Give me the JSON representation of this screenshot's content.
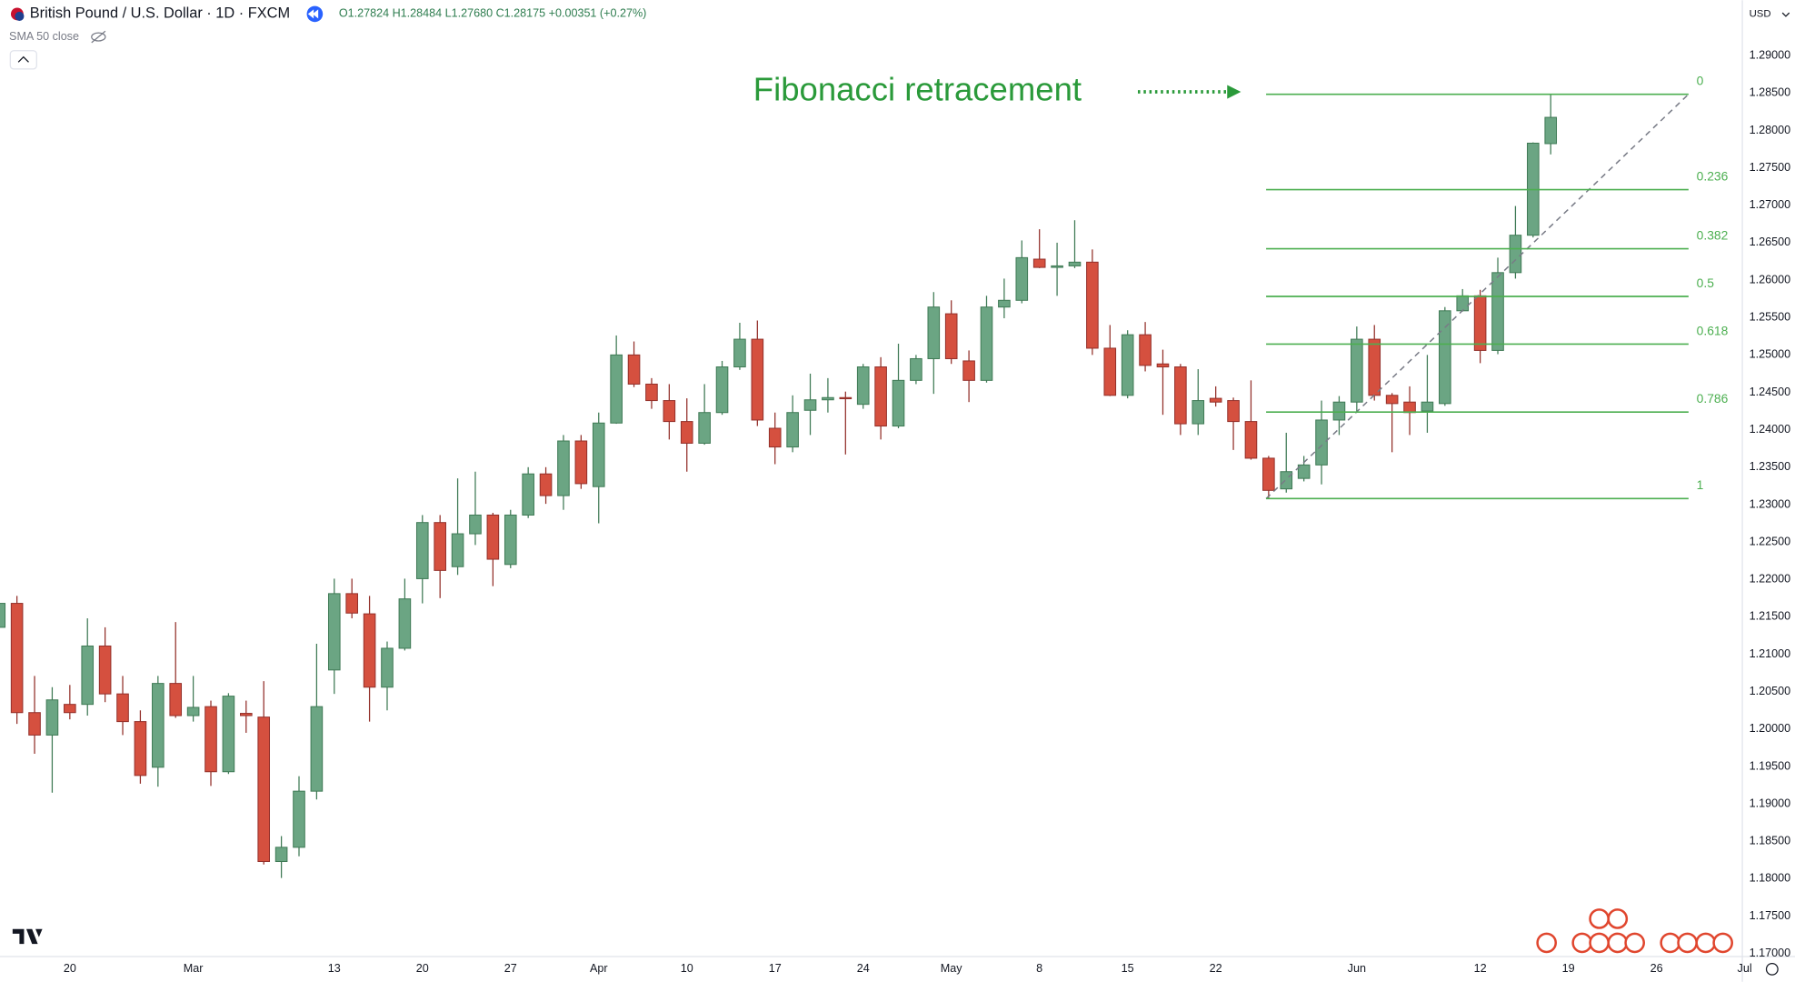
{
  "header": {
    "symbol": "British Pound / U.S. Dollar · 1D · FXCM",
    "quote": "O1.27824 H1.28484 L1.27680 C1.28175 +0.00351 (+0.27%)",
    "indicator": "SMA 50 close",
    "currency": "USD"
  },
  "chart_data": {
    "type": "candlestick",
    "annotation": "Fibonacci retracement",
    "up_color": "#6ba583",
    "up_border": "#3f7a55",
    "down_color": "#d5503f",
    "down_border": "#93302a",
    "grid": false,
    "ylim": [
      1.1696,
      1.2974
    ],
    "yticks": [
      {
        "value": 1.29,
        "label": "1.29000"
      },
      {
        "value": 1.285,
        "label": "1.28500"
      },
      {
        "value": 1.28,
        "label": "1.28000"
      },
      {
        "value": 1.275,
        "label": "1.27500"
      },
      {
        "value": 1.27,
        "label": "1.27000"
      },
      {
        "value": 1.265,
        "label": "1.26500"
      },
      {
        "value": 1.26,
        "label": "1.26000"
      },
      {
        "value": 1.255,
        "label": "1.25500"
      },
      {
        "value": 1.25,
        "label": "1.25000"
      },
      {
        "value": 1.245,
        "label": "1.24500"
      },
      {
        "value": 1.24,
        "label": "1.24000"
      },
      {
        "value": 1.235,
        "label": "1.23500"
      },
      {
        "value": 1.23,
        "label": "1.23000"
      },
      {
        "value": 1.225,
        "label": "1.22500"
      },
      {
        "value": 1.22,
        "label": "1.22000"
      },
      {
        "value": 1.215,
        "label": "1.21500"
      },
      {
        "value": 1.21,
        "label": "1.21000"
      },
      {
        "value": 1.205,
        "label": "1.20500"
      },
      {
        "value": 1.2,
        "label": "1.20000"
      },
      {
        "value": 1.195,
        "label": "1.19500"
      },
      {
        "value": 1.19,
        "label": "1.19000"
      },
      {
        "value": 1.185,
        "label": "1.18500"
      },
      {
        "value": 1.18,
        "label": "1.18000"
      },
      {
        "value": 1.175,
        "label": "1.17500"
      },
      {
        "value": 1.17,
        "label": "1.17000"
      }
    ],
    "categories": [
      null,
      null,
      null,
      null,
      "20",
      null,
      null,
      null,
      null,
      null,
      null,
      "Mar",
      null,
      null,
      null,
      null,
      null,
      null,
      null,
      "13",
      null,
      null,
      null,
      null,
      "20",
      null,
      null,
      null,
      null,
      "27",
      null,
      null,
      null,
      null,
      "Apr",
      null,
      null,
      null,
      null,
      "10",
      null,
      null,
      null,
      null,
      "17",
      null,
      null,
      null,
      null,
      "24",
      null,
      null,
      null,
      null,
      "May",
      null,
      null,
      null,
      null,
      "8",
      null,
      null,
      null,
      null,
      "15",
      null,
      null,
      null,
      null,
      "22",
      null,
      null,
      null,
      null,
      null,
      null,
      null,
      "Jun",
      null,
      null,
      null,
      null,
      null,
      null,
      "12",
      null,
      null,
      null,
      null,
      "19",
      null,
      null,
      null,
      null,
      "26",
      null,
      null,
      null,
      null,
      "Jul"
    ],
    "open": [
      1.2136,
      1.2168,
      1.2022,
      1.1992,
      1.2033,
      1.2033,
      1.2111,
      1.2047,
      1.201,
      1.1949,
      1.2061,
      1.2018,
      1.203,
      1.1943,
      1.2021,
      1.2016,
      1.1823,
      1.1842,
      1.1917,
      1.2079,
      1.2181,
      1.2154,
      1.2056,
      1.2108,
      1.2201,
      1.2276,
      1.2217,
      1.2261,
      1.2286,
      1.222,
      1.2286,
      1.2341,
      1.2312,
      1.2385,
      1.2324,
      1.2409,
      1.25,
      1.2461,
      1.2439,
      1.2411,
      1.2382,
      1.2423,
      1.2484,
      1.2521,
      1.2402,
      1.2377,
      1.2426,
      1.244,
      1.2443,
      1.2434,
      1.2484,
      1.2405,
      1.2466,
      1.2495,
      1.2555,
      1.2492,
      1.2466,
      1.2564,
      1.2573,
      1.2628,
      1.2617,
      1.2619,
      1.2624,
      1.2509,
      1.2446,
      1.2527,
      1.2488,
      1.2484,
      1.2408,
      1.2442,
      1.2439,
      1.2411,
      1.2362,
      1.2321,
      1.2335,
      1.2353,
      1.2413,
      1.2437,
      1.2521,
      1.2446,
      1.2437,
      1.2425,
      1.2435,
      1.2559,
      1.2579,
      1.2506,
      1.261,
      1.266,
      1.27824,
      null,
      null,
      null,
      null,
      null,
      null,
      null,
      null,
      null,
      null,
      null
    ],
    "high": [
      1.2178,
      1.2178,
      1.2071,
      1.2056,
      1.2059,
      1.2148,
      1.2136,
      1.2071,
      1.2025,
      1.2071,
      1.2143,
      1.2071,
      1.2038,
      1.2048,
      1.2038,
      1.2064,
      1.1857,
      1.1937,
      1.2114,
      1.2201,
      1.2201,
      1.2178,
      1.2117,
      1.2201,
      1.2286,
      1.2286,
      1.2335,
      1.2344,
      1.2289,
      1.2293,
      1.235,
      1.235,
      1.2393,
      1.2393,
      1.2423,
      1.2526,
      1.2518,
      1.2469,
      1.2461,
      1.2442,
      1.2461,
      1.2492,
      1.2543,
      1.2546,
      1.2423,
      1.2446,
      1.2475,
      1.2469,
      1.2451,
      1.2488,
      1.2497,
      1.2515,
      1.25,
      1.2584,
      1.2573,
      1.2506,
      1.2579,
      1.2602,
      1.2653,
      1.2668,
      1.265,
      1.268,
      1.2641,
      1.254,
      1.2533,
      1.2544,
      1.2507,
      1.2488,
      1.2481,
      1.2458,
      1.2443,
      1.2466,
      1.2365,
      1.2396,
      1.2365,
      1.2439,
      1.2445,
      1.2538,
      1.254,
      1.2449,
      1.2458,
      1.25,
      1.2564,
      1.2588,
      1.2587,
      1.263,
      1.2699,
      1.2784,
      1.28484,
      null,
      null,
      null,
      null,
      null,
      null,
      null,
      null,
      null,
      null,
      null
    ],
    "low": [
      1.2125,
      1.2007,
      1.1967,
      1.1915,
      1.2013,
      1.2018,
      1.2036,
      1.1992,
      1.1927,
      1.1923,
      1.2015,
      1.201,
      1.1924,
      1.194,
      1.1995,
      1.1819,
      1.1801,
      1.183,
      1.1906,
      1.2047,
      1.2148,
      1.201,
      1.2025,
      1.2105,
      1.2168,
      1.2175,
      1.2206,
      1.2246,
      1.2191,
      1.2215,
      1.2282,
      1.2301,
      1.2293,
      1.2321,
      1.2275,
      1.2408,
      1.2457,
      1.2428,
      1.2387,
      1.2344,
      1.238,
      1.242,
      1.248,
      1.2405,
      1.2354,
      1.237,
      1.2393,
      1.2423,
      1.2367,
      1.2428,
      1.2387,
      1.2402,
      1.2461,
      1.2448,
      1.2488,
      1.2437,
      1.2463,
      1.2549,
      1.2569,
      1.2616,
      1.2579,
      1.2616,
      1.25,
      1.2445,
      1.2442,
      1.2478,
      1.242,
      1.2393,
      1.2393,
      1.2431,
      1.2373,
      1.236,
      1.2308,
      1.2316,
      1.2331,
      1.2327,
      1.2393,
      1.2423,
      1.2439,
      1.237,
      1.2393,
      1.2396,
      1.2432,
      1.2558,
      1.2489,
      1.2501,
      1.2602,
      1.2657,
      1.2768,
      null,
      null,
      null,
      null,
      null,
      null,
      null,
      null,
      null,
      null,
      null
    ],
    "close": [
      1.2168,
      1.2022,
      1.1992,
      1.2039,
      1.2022,
      1.2111,
      1.2047,
      1.201,
      1.1938,
      1.2061,
      1.2018,
      1.2029,
      1.1943,
      1.2044,
      1.2018,
      1.1823,
      1.1842,
      1.1917,
      1.203,
      1.2181,
      1.2155,
      1.2056,
      1.2108,
      1.2174,
      1.2276,
      1.2212,
      1.2261,
      1.2286,
      1.2227,
      1.2286,
      1.2341,
      1.2312,
      1.2385,
      1.2328,
      1.2409,
      1.25,
      1.2461,
      1.2439,
      1.2411,
      1.2382,
      1.2423,
      1.2484,
      1.2521,
      1.2413,
      1.2377,
      1.2423,
      1.244,
      1.2443,
      1.2442,
      1.2484,
      1.2405,
      1.2466,
      1.2495,
      1.2564,
      1.2495,
      1.2466,
      1.2564,
      1.2573,
      1.263,
      1.2617,
      1.2619,
      1.2624,
      1.2509,
      1.2446,
      1.2527,
      1.2486,
      1.2484,
      1.2408,
      1.2439,
      1.2437,
      1.2411,
      1.2362,
      1.2319,
      1.2344,
      1.2353,
      1.2413,
      1.2437,
      1.2521,
      1.2446,
      1.2435,
      1.2423,
      1.2437,
      1.2559,
      1.2579,
      1.2506,
      1.261,
      1.266,
      1.2783,
      1.28175,
      null,
      null,
      null,
      null,
      null,
      null,
      null,
      null,
      null,
      null,
      null
    ],
    "fib": {
      "high": 1.28484,
      "low": 1.2308,
      "color": "#4caf50",
      "levels": [
        0,
        0.236,
        0.382,
        0.5,
        0.618,
        0.786,
        1
      ]
    }
  }
}
